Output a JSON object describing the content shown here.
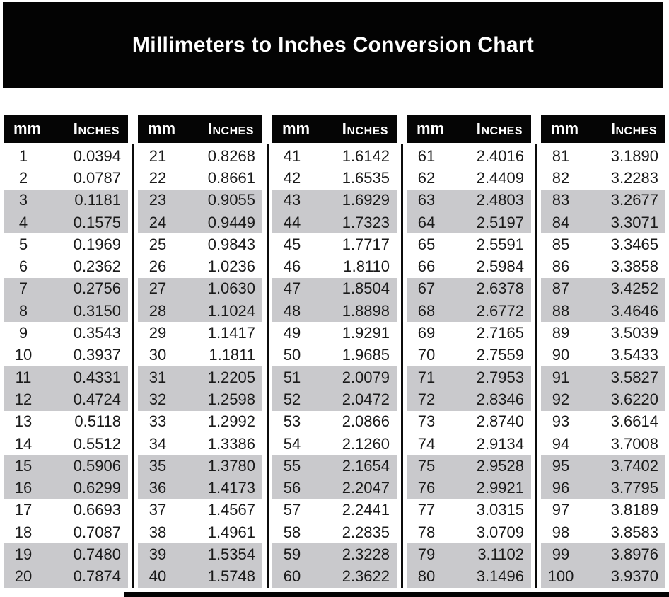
{
  "banner": {
    "title": "Millimeters to Inches Conversion Chart",
    "bg": "#030303",
    "text_color": "#ffffff"
  },
  "table_header": {
    "mm": "mm",
    "inches": "Inches"
  },
  "colors": {
    "shaded_row": "#c9c9cc",
    "header_bg": "#050505",
    "divider": "#0b0b0b",
    "data_text": "#1a1a1a"
  },
  "chart_data": {
    "type": "table",
    "title": "Millimeters to Inches Conversion Chart",
    "column_headers": [
      "mm",
      "Inches"
    ],
    "shading_pattern": "two white rows alternating with two gray rows",
    "column_groups": [
      {
        "rows": [
          [
            "1",
            "0.0394"
          ],
          [
            "2",
            "0.0787"
          ],
          [
            "3",
            "0.1181"
          ],
          [
            "4",
            "0.1575"
          ],
          [
            "5",
            "0.1969"
          ],
          [
            "6",
            "0.2362"
          ],
          [
            "7",
            "0.2756"
          ],
          [
            "8",
            "0.3150"
          ],
          [
            "9",
            "0.3543"
          ],
          [
            "10",
            "0.3937"
          ],
          [
            "11",
            "0.4331"
          ],
          [
            "12",
            "0.4724"
          ],
          [
            "13",
            "0.5118"
          ],
          [
            "14",
            "0.5512"
          ],
          [
            "15",
            "0.5906"
          ],
          [
            "16",
            "0.6299"
          ],
          [
            "17",
            "0.6693"
          ],
          [
            "18",
            "0.7087"
          ],
          [
            "19",
            "0.7480"
          ],
          [
            "20",
            "0.7874"
          ]
        ]
      },
      {
        "rows": [
          [
            "21",
            "0.8268"
          ],
          [
            "22",
            "0.8661"
          ],
          [
            "23",
            "0.9055"
          ],
          [
            "24",
            "0.9449"
          ],
          [
            "25",
            "0.9843"
          ],
          [
            "26",
            "1.0236"
          ],
          [
            "27",
            "1.0630"
          ],
          [
            "28",
            "1.1024"
          ],
          [
            "29",
            "1.1417"
          ],
          [
            "30",
            "1.1811"
          ],
          [
            "31",
            "1.2205"
          ],
          [
            "32",
            "1.2598"
          ],
          [
            "33",
            "1.2992"
          ],
          [
            "34",
            "1.3386"
          ],
          [
            "35",
            "1.3780"
          ],
          [
            "36",
            "1.4173"
          ],
          [
            "37",
            "1.4567"
          ],
          [
            "38",
            "1.4961"
          ],
          [
            "39",
            "1.5354"
          ],
          [
            "40",
            "1.5748"
          ]
        ]
      },
      {
        "rows": [
          [
            "41",
            "1.6142"
          ],
          [
            "42",
            "1.6535"
          ],
          [
            "43",
            "1.6929"
          ],
          [
            "44",
            "1.7323"
          ],
          [
            "45",
            "1.7717"
          ],
          [
            "46",
            "1.8110"
          ],
          [
            "47",
            "1.8504"
          ],
          [
            "48",
            "1.8898"
          ],
          [
            "49",
            "1.9291"
          ],
          [
            "50",
            "1.9685"
          ],
          [
            "51",
            "2.0079"
          ],
          [
            "52",
            "2.0472"
          ],
          [
            "53",
            "2.0866"
          ],
          [
            "54",
            "2.1260"
          ],
          [
            "55",
            "2.1654"
          ],
          [
            "56",
            "2.2047"
          ],
          [
            "57",
            "2.2441"
          ],
          [
            "58",
            "2.2835"
          ],
          [
            "59",
            "2.3228"
          ],
          [
            "60",
            "2.3622"
          ]
        ]
      },
      {
        "rows": [
          [
            "61",
            "2.4016"
          ],
          [
            "62",
            "2.4409"
          ],
          [
            "63",
            "2.4803"
          ],
          [
            "64",
            "2.5197"
          ],
          [
            "65",
            "2.5591"
          ],
          [
            "66",
            "2.5984"
          ],
          [
            "67",
            "2.6378"
          ],
          [
            "68",
            "2.6772"
          ],
          [
            "69",
            "2.7165"
          ],
          [
            "70",
            "2.7559"
          ],
          [
            "71",
            "2.7953"
          ],
          [
            "72",
            "2.8346"
          ],
          [
            "73",
            "2.8740"
          ],
          [
            "74",
            "2.9134"
          ],
          [
            "75",
            "2.9528"
          ],
          [
            "76",
            "2.9921"
          ],
          [
            "77",
            "3.0315"
          ],
          [
            "78",
            "3.0709"
          ],
          [
            "79",
            "3.1102"
          ],
          [
            "80",
            "3.1496"
          ]
        ]
      },
      {
        "rows": [
          [
            "81",
            "3.1890"
          ],
          [
            "82",
            "3.2283"
          ],
          [
            "83",
            "3.2677"
          ],
          [
            "84",
            "3.3071"
          ],
          [
            "85",
            "3.3465"
          ],
          [
            "86",
            "3.3858"
          ],
          [
            "87",
            "3.4252"
          ],
          [
            "88",
            "3.4646"
          ],
          [
            "89",
            "3.5039"
          ],
          [
            "90",
            "3.5433"
          ],
          [
            "91",
            "3.5827"
          ],
          [
            "92",
            "3.6220"
          ],
          [
            "93",
            "3.6614"
          ],
          [
            "94",
            "3.7008"
          ],
          [
            "95",
            "3.7402"
          ],
          [
            "96",
            "3.7795"
          ],
          [
            "97",
            "3.8189"
          ],
          [
            "98",
            "3.8583"
          ],
          [
            "99",
            "3.8976"
          ],
          [
            "100",
            "3.9370"
          ]
        ]
      }
    ]
  }
}
